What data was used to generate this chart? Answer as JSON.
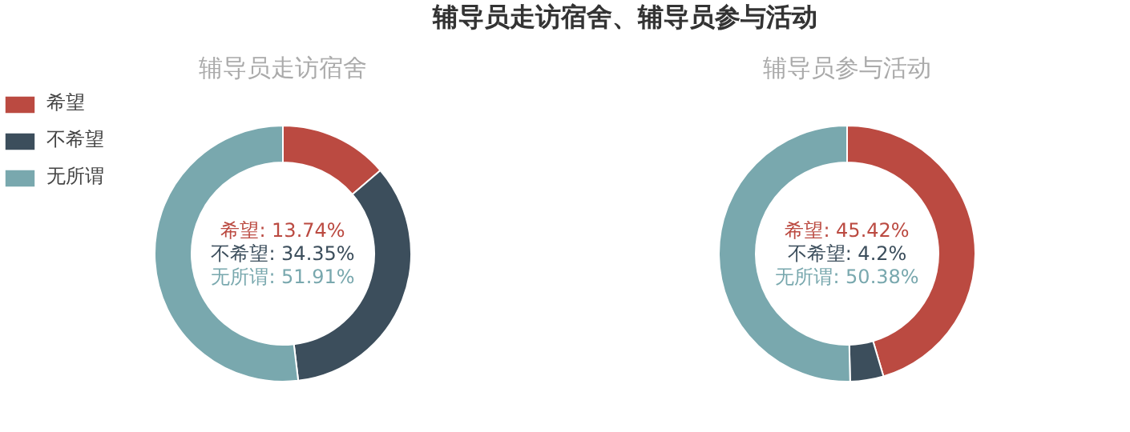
{
  "chart_data": [
    {
      "type": "donut",
      "title": "辅导员走访宿舍",
      "annotations": [
        "辅导员走访宿舍、辅导员参与活动"
      ],
      "legend": "top left",
      "categories": [
        "希望",
        "不希望",
        "无所谓"
      ],
      "values": [
        13.74,
        34.35,
        51.91
      ],
      "colors": [
        "#bb4a41",
        "#3c4e5c",
        "#79a8ae"
      ],
      "value_labels": [
        ": 13.74%",
        ": 34.35%",
        ": 51.91%"
      ]
    },
    {
      "type": "donut",
      "title": "辅导员参与活动",
      "categories": [
        "希望",
        "不希望",
        "无所谓"
      ],
      "values": [
        45.42,
        4.2,
        50.38
      ],
      "colors": [
        "#bb4a41",
        "#3c4e5c",
        "#79a8ae"
      ],
      "value_labels": [
        ": 45.42%",
        ": 4.2%",
        ": 50.38%"
      ]
    }
  ]
}
